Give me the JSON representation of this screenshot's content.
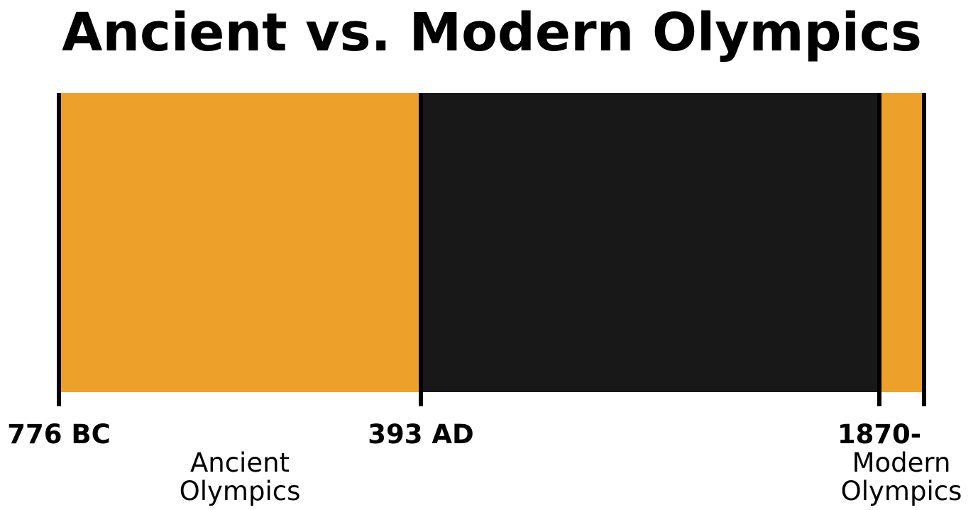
{
  "chart_data": {
    "type": "bar",
    "title": "Ancient vs. Modern Olympics",
    "orientation": "horizontal-timeline",
    "tick_labels": [
      "776 BC",
      "393 AD",
      "1870-",
      ""
    ],
    "segments": [
      {
        "label": "Ancient Olympics",
        "start": -776,
        "end": 393,
        "color": "#EEA12A"
      },
      {
        "label": "",
        "start": 393,
        "end": 1870,
        "color": "#181818"
      },
      {
        "label": "Modern Olympics",
        "start": 1870,
        "end": 2016,
        "color": "#EEA12A"
      }
    ],
    "xlim": [
      -776,
      2016
    ],
    "xlabel": "",
    "ylabel": "",
    "grid": false,
    "legend": "none"
  }
}
